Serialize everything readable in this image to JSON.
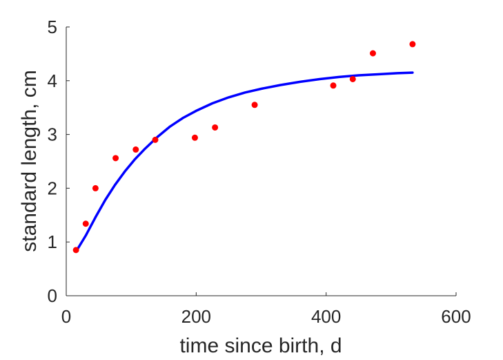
{
  "chart_data": {
    "type": "scatter",
    "xlabel": "time since birth, d",
    "ylabel": "standard length, cm",
    "xlim": [
      0,
      600
    ],
    "ylim": [
      0,
      5
    ],
    "xticks": [
      0,
      200,
      400,
      600
    ],
    "yticks": [
      0,
      1,
      2,
      3,
      4,
      5
    ],
    "grid": false,
    "series": [
      {
        "kind": "points",
        "color": "#ff0000",
        "x": [
          15,
          30,
          45,
          76,
          107,
          137,
          198,
          229,
          290,
          411,
          441,
          472,
          533
        ],
        "y": [
          0.85,
          1.34,
          2.0,
          2.56,
          2.72,
          2.9,
          2.94,
          3.13,
          3.55,
          3.91,
          4.03,
          4.51,
          4.68
        ]
      },
      {
        "kind": "curve",
        "color": "#0000ff",
        "x": [
          15,
          30,
          45,
          60,
          75,
          90,
          105,
          120,
          140,
          160,
          180,
          200,
          225,
          250,
          275,
          300,
          330,
          360,
          390,
          420,
          450,
          480,
          510,
          533
        ],
        "y": [
          0.82,
          1.12,
          1.46,
          1.78,
          2.06,
          2.31,
          2.53,
          2.72,
          2.95,
          3.15,
          3.31,
          3.44,
          3.58,
          3.69,
          3.78,
          3.85,
          3.92,
          3.98,
          4.03,
          4.07,
          4.1,
          4.12,
          4.14,
          4.15
        ]
      }
    ]
  }
}
